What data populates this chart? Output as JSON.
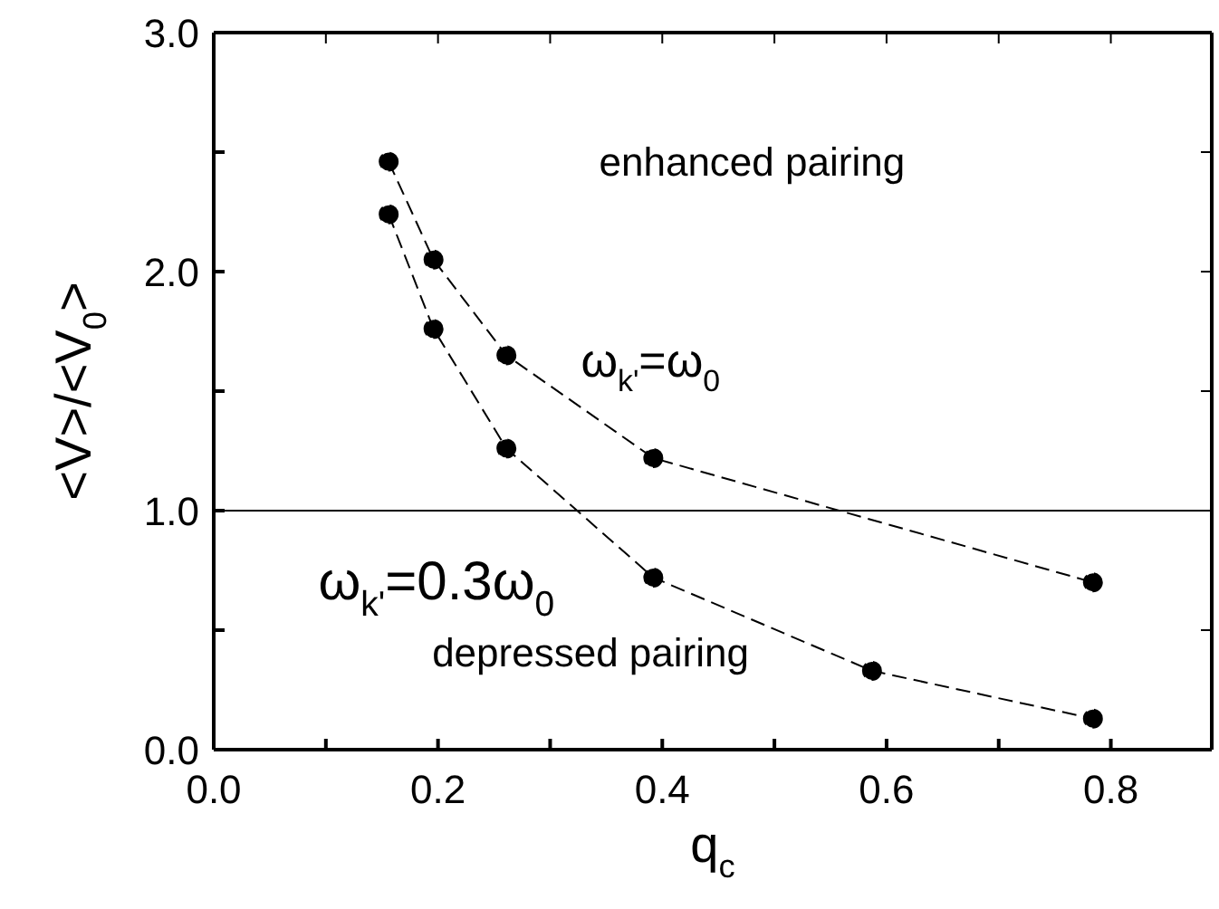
{
  "chart_data": {
    "type": "line",
    "xlabel": "q$_{c}$",
    "ylabel": "<V>/<V$_{0}$>",
    "xlim": [
      0,
      0.89
    ],
    "xticks": [
      {
        "value": 0,
        "label": "0.0"
      },
      {
        "value": 0.1,
        "label": null
      },
      {
        "value": 0.2,
        "label": "0.2"
      },
      {
        "value": 0.3,
        "label": null
      },
      {
        "value": 0.4,
        "label": "0.4"
      },
      {
        "value": 0.5,
        "label": null
      },
      {
        "value": 0.6,
        "label": "0.6"
      },
      {
        "value": 0.7,
        "label": null
      },
      {
        "value": 0.8,
        "label": "0.8"
      }
    ],
    "ylim": [
      0,
      3
    ],
    "yticks": [
      {
        "value": 0,
        "label": "0.0"
      },
      {
        "value": 0.5,
        "label": null
      },
      {
        "value": 1,
        "label": "1.0"
      },
      {
        "value": 1.5,
        "label": null
      },
      {
        "value": 2,
        "label": "2.0"
      },
      {
        "value": 2.5,
        "label": null
      },
      {
        "value": 3,
        "label": "3.0"
      }
    ],
    "series": [
      {
        "name": "ω$_{k'}$=ω$_{0}$",
        "color": "#000000",
        "x": [
          0.156,
          0.196,
          0.261,
          0.392,
          0.784
        ],
        "values": [
          2.46,
          2.05,
          1.65,
          1.22,
          0.7
        ]
      },
      {
        "name": "ω$_{k'}$=0.3ω$_{0}$",
        "color": "#000000",
        "x": [
          0.156,
          0.196,
          0.261,
          0.392,
          0.587,
          0.784
        ],
        "values": [
          2.24,
          1.76,
          1.26,
          0.72,
          0.33,
          0.13
        ]
      }
    ],
    "ref_lines": [
      {
        "axis": "y",
        "value": 1,
        "color": "#000000",
        "line_style": "solid"
      }
    ],
    "annotations": [
      "enhanced pairing",
      "depressed pairing"
    ],
    "marker": "circle",
    "line_style": "dashed"
  }
}
